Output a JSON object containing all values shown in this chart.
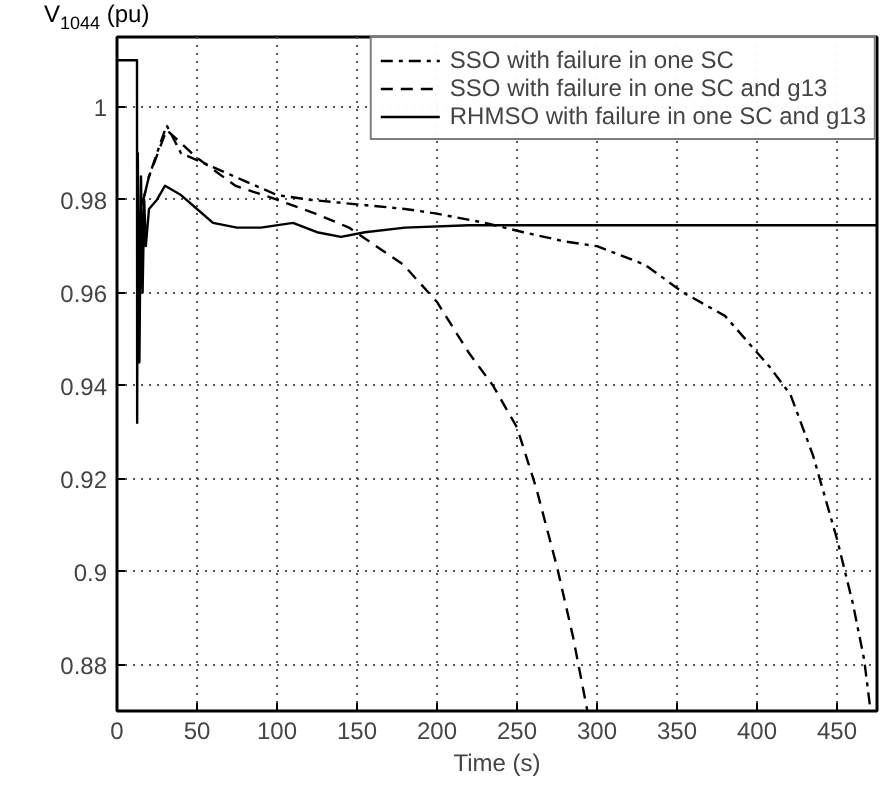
{
  "chart_data": {
    "type": "line",
    "xlabel": "Time (s)",
    "ylabel": "V$_{1044}$ (pu)",
    "xlim": [
      0,
      475
    ],
    "ylim": [
      0.87,
      1.015
    ],
    "xticks": [
      0,
      50,
      100,
      150,
      200,
      250,
      300,
      350,
      400,
      450
    ],
    "yticks": [
      0.88,
      0.9,
      0.92,
      0.94,
      0.96,
      0.98,
      1
    ],
    "grid": true,
    "legend": "top right",
    "marker": "none",
    "series": [
      {
        "name": "SSO with failure in one SC",
        "color": "#000000",
        "line_style": "dashdot",
        "x": [
          13,
          20,
          31,
          40,
          60,
          80,
          100,
          120,
          150,
          180,
          200,
          230,
          254,
          280,
          300,
          330,
          354,
          380,
          408,
          421,
          435,
          450,
          460,
          467,
          471
        ],
        "values": [
          0.975,
          0.985,
          0.996,
          0.99,
          0.987,
          0.984,
          0.981,
          0.98,
          0.979,
          0.978,
          0.977,
          0.975,
          0.973,
          0.971,
          0.97,
          0.966,
          0.96,
          0.955,
          0.944,
          0.938,
          0.925,
          0.907,
          0.893,
          0.881,
          0.87
        ]
      },
      {
        "name": "SSO with failure in one SC and g13",
        "color": "#000000",
        "line_style": "dashed",
        "x": [
          13,
          20,
          31,
          50,
          74,
          100,
          124,
          145,
          162,
          179,
          200,
          220,
          235,
          250,
          262,
          275,
          285,
          294
        ],
        "values": [
          0.975,
          0.985,
          0.995,
          0.989,
          0.983,
          0.98,
          0.977,
          0.974,
          0.97,
          0.966,
          0.958,
          0.947,
          0.94,
          0.931,
          0.918,
          0.901,
          0.886,
          0.87
        ]
      },
      {
        "name": "RHMSO with failure in one SC and g13",
        "color": "#000000",
        "line_style": "solid",
        "x": [
          0,
          12.5,
          12.6,
          13,
          14,
          15,
          16,
          17,
          18,
          20,
          25,
          30,
          40,
          50,
          60,
          75,
          90,
          110,
          125,
          140,
          155,
          180,
          220,
          300,
          400,
          475
        ],
        "values": [
          1.01,
          1.01,
          0.932,
          0.99,
          0.945,
          0.985,
          0.96,
          0.98,
          0.97,
          0.978,
          0.98,
          0.983,
          0.981,
          0.978,
          0.975,
          0.974,
          0.974,
          0.975,
          0.973,
          0.972,
          0.973,
          0.974,
          0.9745,
          0.9745,
          0.9745,
          0.9745
        ]
      }
    ]
  }
}
